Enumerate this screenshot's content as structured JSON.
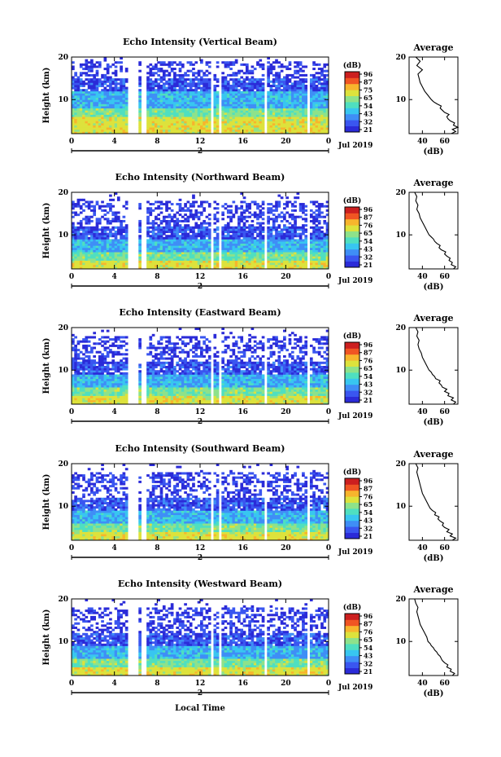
{
  "chart_data": [
    {
      "type": "heatmap",
      "title": "Echo Intensity (Vertical Beam)",
      "ylabel": "Height (km)",
      "yticks": [
        "10",
        "20"
      ],
      "ylim": [
        2,
        20
      ],
      "xticks": [
        "0",
        "4",
        "8",
        "12",
        "16",
        "20",
        "0"
      ],
      "xlim": [
        0,
        24
      ],
      "date_label": "Jul 2019",
      "date_marker": "2",
      "colorbar": {
        "unit": "(dB)",
        "labels": [
          "96",
          "87",
          "75",
          "65",
          "54",
          "43",
          "32",
          "21"
        ]
      },
      "data_gaps_hours": [
        [
          5.3,
          6.2
        ],
        [
          6.6,
          6.9
        ],
        [
          13.0,
          13.3
        ],
        [
          13.7,
          14.0
        ],
        [
          17.9,
          18.2
        ],
        [
          22.0,
          22.3
        ]
      ],
      "layers": {
        "yellow_top_km": 6,
        "green_top_km": 8,
        "cyan_top_km": 12,
        "blue_top_km": 15,
        "sparse_top_km": 19
      },
      "profile": {
        "title": "Average",
        "xlabel": "(dB)",
        "xticks": [
          "40",
          "60"
        ],
        "xlim": [
          28,
          72
        ],
        "ylim": [
          2,
          20
        ],
        "yticks": [
          "10",
          "20"
        ],
        "height_km": [
          2,
          2.5,
          3,
          3.5,
          4,
          4.5,
          5,
          5.5,
          6,
          6.5,
          7,
          7.5,
          8,
          8.5,
          9,
          9.5,
          10,
          11,
          12,
          13,
          14,
          15,
          16,
          17,
          18,
          19,
          20
        ],
        "db": [
          66,
          70,
          67,
          72,
          68,
          69,
          65,
          63,
          62,
          64,
          60,
          58,
          56,
          57,
          53,
          50,
          48,
          45,
          42,
          40,
          38,
          37,
          36,
          40,
          35,
          38,
          34
        ]
      }
    },
    {
      "type": "heatmap",
      "title": "Echo Intensity (Northward Beam)",
      "ylabel": "Height (km)",
      "yticks": [
        "10",
        "20"
      ],
      "ylim": [
        2,
        20
      ],
      "xticks": [
        "0",
        "4",
        "8",
        "12",
        "16",
        "20",
        "0"
      ],
      "xlim": [
        0,
        24
      ],
      "date_label": "Jul 2019",
      "date_marker": "2",
      "colorbar": {
        "unit": "(dB)",
        "labels": [
          "96",
          "87",
          "76",
          "65",
          "54",
          "43",
          "32",
          "21"
        ]
      },
      "data_gaps_hours": [
        [
          5.3,
          6.2
        ],
        [
          6.6,
          6.9
        ],
        [
          13.0,
          13.3
        ],
        [
          13.7,
          14.0
        ],
        [
          17.9,
          18.2
        ],
        [
          22.0,
          22.3
        ]
      ],
      "layers": {
        "yellow_top_km": 4,
        "green_top_km": 6,
        "cyan_top_km": 9,
        "blue_top_km": 12,
        "sparse_top_km": 18
      },
      "profile": {
        "title": "Average",
        "xlabel": "(dB)",
        "xticks": [
          "40",
          "60"
        ],
        "xlim": [
          28,
          72
        ],
        "ylim": [
          2,
          20
        ],
        "yticks": [
          "10",
          "20"
        ],
        "height_km": [
          2,
          2.5,
          3,
          3.5,
          4,
          4.5,
          5,
          5.5,
          6,
          6.5,
          7,
          7.5,
          8,
          8.5,
          9,
          9.5,
          10,
          11,
          12,
          13,
          14,
          15,
          16,
          17,
          18,
          19,
          20
        ],
        "db": [
          68,
          70,
          66,
          67,
          64,
          65,
          62,
          60,
          61,
          57,
          55,
          56,
          53,
          51,
          50,
          48,
          46,
          44,
          42,
          40,
          38,
          37,
          35,
          36,
          34,
          35,
          33
        ]
      }
    },
    {
      "type": "heatmap",
      "title": "Echo Intensity (Eastward Beam)",
      "ylabel": "Height (km)",
      "yticks": [
        "10",
        "20"
      ],
      "ylim": [
        2,
        20
      ],
      "xticks": [
        "0",
        "4",
        "8",
        "12",
        "16",
        "20",
        "0"
      ],
      "xlim": [
        0,
        24
      ],
      "date_label": "Jul 2019",
      "date_marker": "2",
      "colorbar": {
        "unit": "(dB)",
        "labels": [
          "96",
          "87",
          "76",
          "65",
          "54",
          "43",
          "32",
          "21"
        ]
      },
      "data_gaps_hours": [
        [
          5.3,
          6.2
        ],
        [
          6.6,
          6.9
        ],
        [
          13.0,
          13.3
        ],
        [
          13.7,
          14.0
        ],
        [
          17.9,
          18.2
        ],
        [
          22.0,
          22.3
        ]
      ],
      "layers": {
        "yellow_top_km": 4,
        "green_top_km": 6,
        "cyan_top_km": 9,
        "blue_top_km": 12,
        "sparse_top_km": 18
      },
      "profile": {
        "title": "Average",
        "xlabel": "(dB)",
        "xticks": [
          "40",
          "60"
        ],
        "xlim": [
          28,
          72
        ],
        "ylim": [
          2,
          20
        ],
        "yticks": [
          "10",
          "20"
        ],
        "height_km": [
          2,
          2.5,
          3,
          3.5,
          4,
          4.5,
          5,
          5.5,
          6,
          6.5,
          7,
          7.5,
          8,
          8.5,
          9,
          9.5,
          10,
          11,
          12,
          13,
          14,
          15,
          16,
          17,
          18,
          19,
          20
        ],
        "db": [
          68,
          70,
          66,
          68,
          63,
          64,
          60,
          62,
          58,
          57,
          55,
          56,
          52,
          51,
          49,
          48,
          46,
          44,
          42,
          40,
          39,
          37,
          36,
          37,
          35,
          36,
          34
        ]
      }
    },
    {
      "type": "heatmap",
      "title": "Echo Intensity (Southward Beam)",
      "ylabel": "Height (km)",
      "yticks": [
        "10",
        "20"
      ],
      "ylim": [
        2,
        20
      ],
      "xticks": [
        "0",
        "4",
        "8",
        "12",
        "16",
        "20",
        "0"
      ],
      "xlim": [
        0,
        24
      ],
      "date_label": "Jul 2019",
      "date_marker": "2",
      "colorbar": {
        "unit": "(dB)",
        "labels": [
          "96",
          "87",
          "76",
          "65",
          "54",
          "43",
          "32",
          "21"
        ]
      },
      "data_gaps_hours": [
        [
          5.3,
          6.2
        ],
        [
          6.6,
          6.9
        ],
        [
          13.0,
          13.3
        ],
        [
          13.7,
          14.0
        ],
        [
          17.9,
          18.2
        ],
        [
          22.0,
          22.3
        ]
      ],
      "layers": {
        "yellow_top_km": 4,
        "green_top_km": 6,
        "cyan_top_km": 9,
        "blue_top_km": 12,
        "sparse_top_km": 18
      },
      "profile": {
        "title": "Average",
        "xlabel": "(dB)",
        "xticks": [
          "40",
          "60"
        ],
        "xlim": [
          28,
          72
        ],
        "ylim": [
          2,
          20
        ],
        "yticks": [
          "10",
          "20"
        ],
        "height_km": [
          2,
          2.5,
          3,
          3.5,
          4,
          4.5,
          5,
          5.5,
          6,
          6.5,
          7,
          7.5,
          8,
          8.5,
          9,
          9.5,
          10,
          11,
          12,
          13,
          14,
          15,
          16,
          17,
          18,
          19,
          20
        ],
        "db": [
          67,
          70,
          65,
          67,
          62,
          64,
          60,
          58,
          59,
          56,
          54,
          55,
          51,
          52,
          49,
          47,
          46,
          44,
          42,
          40,
          39,
          38,
          37,
          36,
          35,
          36,
          34
        ]
      }
    },
    {
      "type": "heatmap",
      "title": "Echo Intensity (Westward Beam)",
      "ylabel": "Height (km)",
      "yticks": [
        "10",
        "20"
      ],
      "ylim": [
        2,
        20
      ],
      "xticks": [
        "0",
        "4",
        "8",
        "12",
        "16",
        "20",
        "0"
      ],
      "xlim": [
        0,
        24
      ],
      "date_label": "Jul 2019",
      "date_marker": "2",
      "xlabel": "Local Time",
      "colorbar": {
        "unit": "(dB)",
        "labels": [
          "96",
          "87",
          "76",
          "65",
          "54",
          "43",
          "32",
          "21"
        ]
      },
      "data_gaps_hours": [
        [
          5.3,
          6.2
        ],
        [
          6.6,
          6.9
        ],
        [
          13.0,
          13.3
        ],
        [
          13.7,
          14.0
        ],
        [
          17.9,
          18.2
        ],
        [
          22.0,
          22.3
        ]
      ],
      "layers": {
        "yellow_top_km": 4,
        "green_top_km": 6,
        "cyan_top_km": 9,
        "blue_top_km": 12,
        "sparse_top_km": 18
      },
      "profile": {
        "title": "Average",
        "xlabel": "(dB)",
        "xticks": [
          "40",
          "60"
        ],
        "xlim": [
          28,
          72
        ],
        "ylim": [
          2,
          20
        ],
        "yticks": [
          "10",
          "20"
        ],
        "height_km": [
          2,
          2.5,
          3,
          3.5,
          4,
          4.5,
          5,
          5.5,
          6,
          6.5,
          7,
          7.5,
          8,
          8.5,
          9,
          9.5,
          10,
          11,
          12,
          13,
          14,
          15,
          16,
          17,
          18,
          19,
          20
        ],
        "db": [
          67,
          69,
          65,
          66,
          62,
          63,
          60,
          58,
          57,
          56,
          54,
          53,
          51,
          50,
          48,
          47,
          45,
          44,
          42,
          40,
          38,
          37,
          36,
          35,
          36,
          34,
          33
        ]
      }
    }
  ],
  "colors": {
    "jet": [
      "#2b2bd8",
      "#3a56f0",
      "#3f8ef6",
      "#38c6f0",
      "#4fdfc0",
      "#8ee28a",
      "#dde23c",
      "#f7b52d",
      "#f05523",
      "#cc1f1f"
    ],
    "gap": "#ffffff",
    "axis": "#000000",
    "profile_line": "#000000"
  }
}
